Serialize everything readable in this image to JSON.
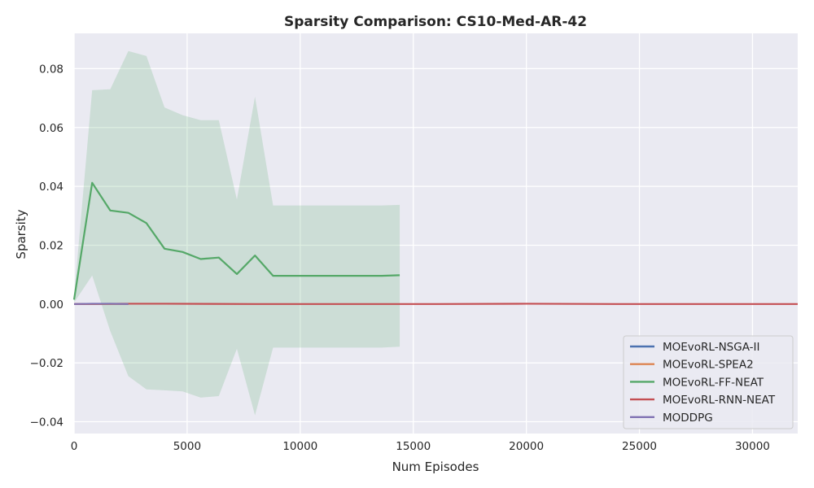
{
  "chart_data": {
    "type": "line",
    "title": "Sparsity Comparison: CS10-Med-AR-42",
    "xlabel": "Num Episodes",
    "ylabel": "Sparsity",
    "xlim": [
      0,
      32000
    ],
    "ylim": [
      -0.044,
      0.092
    ],
    "xticks": [
      0,
      5000,
      10000,
      15000,
      20000,
      25000,
      30000
    ],
    "yticks": [
      -0.04,
      -0.02,
      0.0,
      0.02,
      0.04,
      0.06,
      0.08
    ],
    "xtick_labels": [
      "0",
      "5000",
      "10000",
      "15000",
      "20000",
      "25000",
      "30000"
    ],
    "ytick_labels": [
      "−0.04",
      "−0.02",
      "0.00",
      "0.02",
      "0.04",
      "0.06",
      "0.08"
    ],
    "grid": true,
    "background": "#eaeaf2",
    "legend_position": "lower-right",
    "series": [
      {
        "name": "MOEvoRL-NSGA-II",
        "color": "#4c72b0",
        "x": [
          0,
          800,
          1600,
          2400
        ],
        "y": [
          0.0,
          0.0,
          0.0,
          0.0
        ]
      },
      {
        "name": "MOEvoRL-SPEA2",
        "color": "#dd8452",
        "x": [
          0,
          800,
          1600,
          2400
        ],
        "y": [
          0.0,
          0.0,
          0.0,
          0.0
        ]
      },
      {
        "name": "MOEvoRL-FF-NEAT",
        "color": "#55a868",
        "x": [
          0,
          800,
          1600,
          2400,
          3200,
          4000,
          4800,
          5600,
          6400,
          7200,
          8000,
          8800,
          9600,
          10400,
          11200,
          12000,
          12800,
          13600,
          14400
        ],
        "y": [
          0.0015,
          0.0412,
          0.0318,
          0.031,
          0.0275,
          0.0188,
          0.0177,
          0.0153,
          0.0158,
          0.0102,
          0.0165,
          0.0096,
          0.0096,
          0.0096,
          0.0096,
          0.0096,
          0.0096,
          0.0096,
          0.0098
        ],
        "band_upper": [
          0.0025,
          0.0727,
          0.073,
          0.086,
          0.0843,
          0.0668,
          0.0642,
          0.0625,
          0.0625,
          0.0355,
          0.0705,
          0.0335,
          0.0335,
          0.0335,
          0.0335,
          0.0335,
          0.0335,
          0.0335,
          0.0337
        ],
        "band_lower": [
          0.0005,
          0.0097,
          -0.0092,
          -0.0245,
          -0.029,
          -0.0293,
          -0.0297,
          -0.0318,
          -0.0313,
          -0.0152,
          -0.0378,
          -0.0148,
          -0.0148,
          -0.0148,
          -0.0148,
          -0.0148,
          -0.0148,
          -0.0148,
          -0.0145
        ]
      },
      {
        "name": "MOEvoRL-RNN-NEAT",
        "color": "#c44e52",
        "x": [
          0,
          2000,
          4000,
          8000,
          12000,
          16000,
          20000,
          24000,
          28000,
          32000
        ],
        "y": [
          0.0,
          0.0001,
          0.0001,
          0.0,
          0.0,
          0.0,
          0.0001,
          0.0,
          0.0,
          0.0
        ]
      },
      {
        "name": "MODDPG",
        "color": "#8172b3",
        "x": [
          0,
          800,
          1600,
          2400
        ],
        "y": [
          0.0,
          0.0001,
          0.0001,
          0.0
        ]
      }
    ]
  }
}
